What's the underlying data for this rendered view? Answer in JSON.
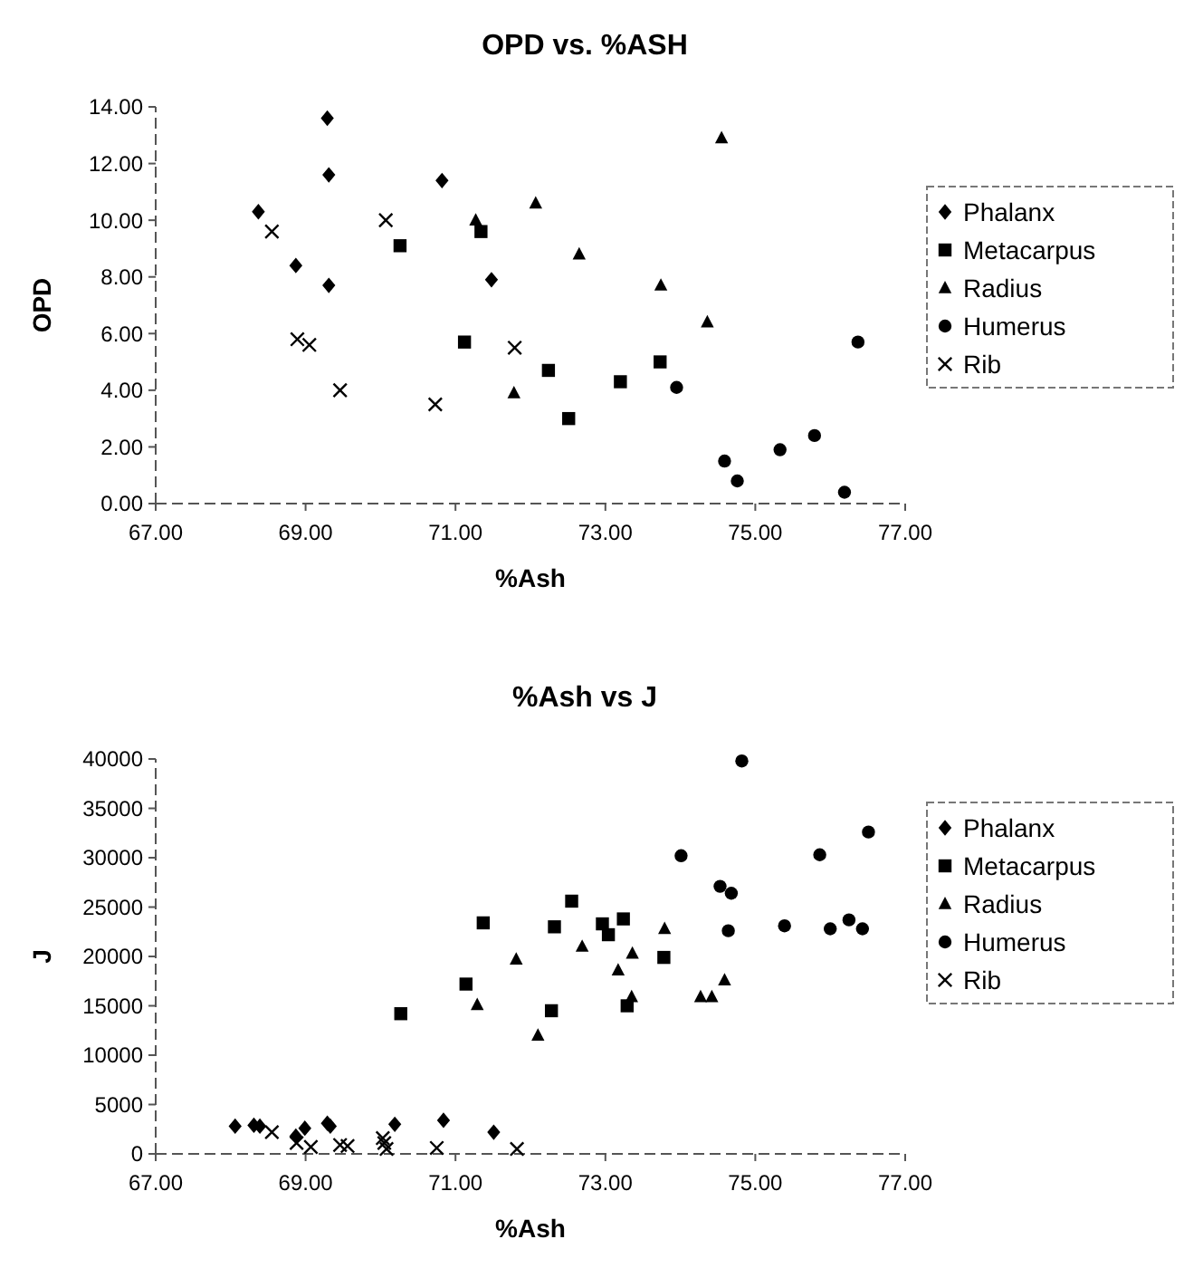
{
  "chart_data": [
    {
      "type": "scatter",
      "title": "OPD vs. %ASH",
      "xlabel": "%Ash",
      "ylabel": "OPD",
      "xlim": [
        67,
        77
      ],
      "xticks": [
        {
          "value": 67,
          "label": "67.00"
        },
        {
          "value": 69,
          "label": "69.00"
        },
        {
          "value": 71,
          "label": "71.00"
        },
        {
          "value": 73,
          "label": "73.00"
        },
        {
          "value": 75,
          "label": "75.00"
        },
        {
          "value": 77,
          "label": "77.00"
        }
      ],
      "ylim": [
        0,
        14
      ],
      "yticks": [
        {
          "value": 0,
          "label": "0.00"
        },
        {
          "value": 2,
          "label": "2.00"
        },
        {
          "value": 4,
          "label": "4.00"
        },
        {
          "value": 6,
          "label": "6.00"
        },
        {
          "value": 8,
          "label": "8.00"
        },
        {
          "value": 10,
          "label": "10.00"
        },
        {
          "value": 12,
          "label": "12.00"
        },
        {
          "value": 14,
          "label": "14.00"
        }
      ],
      "grid": false,
      "legend": "right",
      "series": [
        {
          "name": "Phalanx",
          "color": "#000000",
          "marker": "diamond",
          "x": [
            68.37,
            69.29,
            69.31,
            68.87,
            69.31,
            70.82,
            71.48
          ],
          "values": [
            10.3,
            13.6,
            11.6,
            8.4,
            7.7,
            11.4,
            7.9
          ]
        },
        {
          "name": "Metacarpus",
          "color": "#000000",
          "marker": "square",
          "x": [
            70.26,
            71.34,
            71.12,
            72.24,
            72.51,
            73.2,
            73.73
          ],
          "values": [
            9.1,
            9.6,
            5.7,
            4.7,
            3.0,
            4.3,
            5.0
          ]
        },
        {
          "name": "Radius",
          "color": "#000000",
          "marker": "triangle",
          "x": [
            71.27,
            72.07,
            72.65,
            71.78,
            73.74,
            74.36,
            74.55
          ],
          "values": [
            10.0,
            10.6,
            8.8,
            3.9,
            7.7,
            6.4,
            12.9
          ]
        },
        {
          "name": "Humerus",
          "color": "#000000",
          "marker": "circle",
          "x": [
            73.95,
            74.59,
            74.76,
            75.33,
            75.79,
            76.19,
            76.37
          ],
          "values": [
            4.1,
            1.5,
            0.8,
            1.9,
            2.4,
            0.4,
            5.7
          ]
        },
        {
          "name": "Rib",
          "color": "#000000",
          "marker": "cross",
          "x": [
            68.55,
            70.07,
            68.89,
            69.05,
            69.46,
            70.73,
            71.79
          ],
          "values": [
            9.6,
            10.0,
            5.8,
            5.6,
            4.0,
            3.5,
            5.5
          ]
        }
      ]
    },
    {
      "type": "scatter",
      "title": "%Ash vs J",
      "xlabel": "%Ash",
      "ylabel": "J",
      "xlim": [
        67,
        77
      ],
      "xticks": [
        {
          "value": 67,
          "label": "67.00"
        },
        {
          "value": 69,
          "label": "69.00"
        },
        {
          "value": 71,
          "label": "71.00"
        },
        {
          "value": 73,
          "label": "73.00"
        },
        {
          "value": 75,
          "label": "75.00"
        },
        {
          "value": 77,
          "label": "77.00"
        }
      ],
      "ylim": [
        0,
        40000
      ],
      "yticks": [
        0,
        5000,
        10000,
        15000,
        20000,
        25000,
        30000,
        35000,
        40000
      ],
      "grid": false,
      "legend": "right",
      "series": [
        {
          "name": "Phalanx",
          "color": "#000000",
          "marker": "diamond",
          "x": [
            68.06,
            68.31,
            68.39,
            68.99,
            68.87,
            69.29,
            69.33,
            70.19,
            70.84,
            71.51
          ],
          "values": [
            2800,
            2900,
            2800,
            2600,
            1800,
            3100,
            2800,
            3000,
            3400,
            2200
          ]
        },
        {
          "name": "Metacarpus",
          "color": "#000000",
          "marker": "square",
          "x": [
            70.27,
            71.14,
            71.37,
            72.32,
            72.28,
            72.55,
            72.96,
            73.04,
            73.24,
            73.29,
            73.78
          ],
          "values": [
            14200,
            17200,
            23400,
            23000,
            14500,
            25600,
            23300,
            22200,
            23800,
            15000,
            19900
          ]
        },
        {
          "name": "Radius",
          "color": "#000000",
          "marker": "triangle",
          "x": [
            71.29,
            71.81,
            72.1,
            72.69,
            73.17,
            73.36,
            73.35,
            73.79,
            74.27,
            74.42,
            74.59
          ],
          "values": [
            15100,
            19700,
            12000,
            21000,
            18600,
            20300,
            15900,
            22800,
            15900,
            15900,
            17600
          ]
        },
        {
          "name": "Humerus",
          "color": "#000000",
          "marker": "circle",
          "x": [
            74.01,
            74.82,
            74.53,
            74.68,
            74.64,
            75.39,
            75.86,
            76.0,
            76.25,
            76.43,
            76.51
          ],
          "values": [
            30200,
            39800,
            27100,
            26400,
            22600,
            23100,
            30300,
            22800,
            23700,
            22800,
            32600
          ]
        },
        {
          "name": "Rib",
          "color": "#000000",
          "marker": "cross",
          "x": [
            68.55,
            68.88,
            69.07,
            69.46,
            69.56,
            70.03,
            70.05,
            70.08,
            70.75,
            71.82
          ],
          "values": [
            2200,
            1100,
            700,
            900,
            800,
            1600,
            1100,
            500,
            600,
            500
          ]
        }
      ]
    }
  ]
}
